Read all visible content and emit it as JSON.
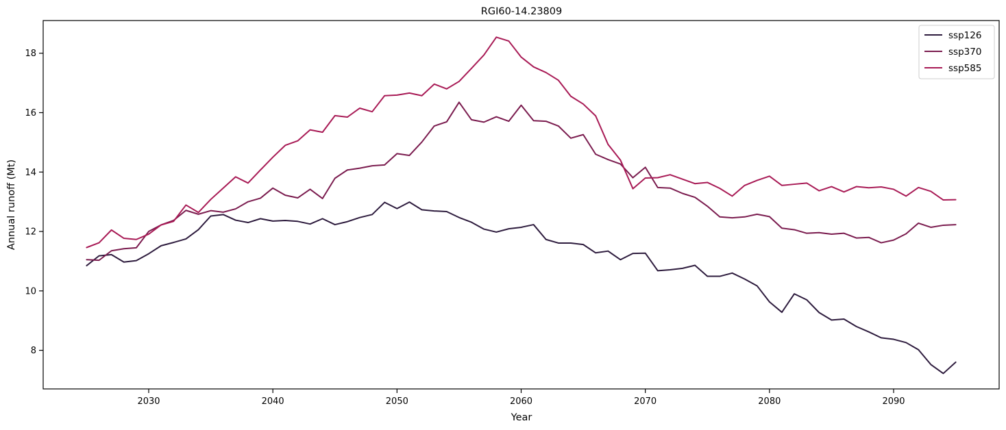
{
  "chart_data": {
    "type": "line",
    "title": "RGI60-14.23809",
    "xlabel": "Year",
    "ylabel": "Annual runoff (Mt)",
    "xlim": [
      2021.5,
      2098.5
    ],
    "ylim": [
      6.7,
      19.1
    ],
    "xticks": [
      2030,
      2040,
      2050,
      2060,
      2070,
      2080,
      2090
    ],
    "yticks": [
      8,
      10,
      12,
      14,
      16,
      18
    ],
    "grid": false,
    "legend_position": "top-right",
    "x": [
      2025,
      2026,
      2027,
      2028,
      2029,
      2030,
      2031,
      2032,
      2033,
      2034,
      2035,
      2036,
      2037,
      2038,
      2039,
      2040,
      2041,
      2042,
      2043,
      2044,
      2045,
      2046,
      2047,
      2048,
      2049,
      2050,
      2051,
      2052,
      2053,
      2054,
      2055,
      2056,
      2057,
      2058,
      2059,
      2060,
      2061,
      2062,
      2063,
      2064,
      2065,
      2066,
      2067,
      2068,
      2069,
      2070,
      2071,
      2072,
      2073,
      2074,
      2075,
      2076,
      2077,
      2078,
      2079,
      2080,
      2081,
      2082,
      2083,
      2084,
      2085,
      2086,
      2087,
      2088,
      2089,
      2090,
      2091,
      2092,
      2093,
      2094,
      2095
    ],
    "series": [
      {
        "name": "ssp126",
        "color": "#2d1b3d",
        "values": [
          10.85,
          11.18,
          11.22,
          10.97,
          11.02,
          11.25,
          11.52,
          11.63,
          11.75,
          12.06,
          12.52,
          12.57,
          12.38,
          12.3,
          12.43,
          12.35,
          12.37,
          12.34,
          12.25,
          12.43,
          12.23,
          12.33,
          12.47,
          12.57,
          12.98,
          12.77,
          12.99,
          12.73,
          12.69,
          12.67,
          12.47,
          12.31,
          12.08,
          11.98,
          12.09,
          12.14,
          12.23,
          11.73,
          11.61,
          11.61,
          11.56,
          11.28,
          11.34,
          11.05,
          11.26,
          11.27,
          10.68,
          10.71,
          10.76,
          10.86,
          10.49,
          10.49,
          10.6,
          10.4,
          10.17,
          9.63,
          9.28,
          9.9,
          9.7,
          9.27,
          9.02,
          9.05,
          8.8,
          8.62,
          8.42,
          8.37,
          8.26,
          8.02,
          7.52,
          7.22,
          7.6
        ]
      },
      {
        "name": "ssp370",
        "color": "#7a1b4e",
        "values": [
          11.05,
          11.03,
          11.35,
          11.42,
          11.45,
          12.0,
          12.22,
          12.37,
          12.71,
          12.58,
          12.7,
          12.65,
          12.76,
          13.0,
          13.12,
          13.46,
          13.22,
          13.13,
          13.42,
          13.11,
          13.79,
          14.07,
          14.13,
          14.21,
          14.24,
          14.62,
          14.56,
          15.01,
          15.55,
          15.69,
          16.35,
          15.76,
          15.68,
          15.86,
          15.71,
          16.25,
          15.73,
          15.71,
          15.55,
          15.14,
          15.26,
          14.6,
          14.42,
          14.27,
          13.81,
          14.16,
          13.48,
          13.46,
          13.28,
          13.15,
          12.85,
          12.49,
          12.46,
          12.49,
          12.58,
          12.5,
          12.11,
          12.06,
          11.94,
          11.96,
          11.91,
          11.94,
          11.78,
          11.8,
          11.62,
          11.71,
          11.92,
          12.28,
          12.14,
          12.21,
          12.23
        ]
      },
      {
        "name": "ssp585",
        "color": "#a81a55",
        "values": [
          11.46,
          11.62,
          12.05,
          11.77,
          11.73,
          11.91,
          12.22,
          12.34,
          12.89,
          12.64,
          13.08,
          13.46,
          13.84,
          13.63,
          14.07,
          14.5,
          14.9,
          15.05,
          15.42,
          15.34,
          15.9,
          15.85,
          16.15,
          16.03,
          16.57,
          16.59,
          16.66,
          16.57,
          16.96,
          16.8,
          17.05,
          17.49,
          17.94,
          18.54,
          18.41,
          17.87,
          17.54,
          17.35,
          17.09,
          16.55,
          16.29,
          15.89,
          14.93,
          14.4,
          13.44,
          13.8,
          13.81,
          13.91,
          13.76,
          13.61,
          13.65,
          13.45,
          13.19,
          13.55,
          13.72,
          13.86,
          13.55,
          13.59,
          13.63,
          13.37,
          13.51,
          13.33,
          13.51,
          13.47,
          13.5,
          13.42,
          13.19,
          13.48,
          13.35,
          13.06,
          13.07
        ]
      }
    ]
  }
}
